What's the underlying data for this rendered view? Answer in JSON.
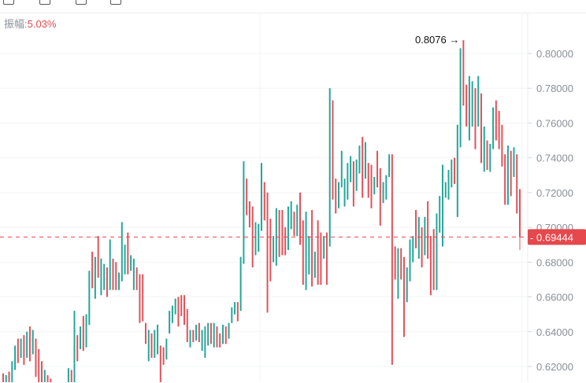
{
  "toolbar": {
    "icons": [
      "toolbar-icon-1",
      "toolbar-icon-2",
      "toolbar-icon-3",
      "toolbar-icon-4"
    ]
  },
  "amplitude": {
    "label": "振幅:",
    "value": "5.03%"
  },
  "colors": {
    "up": "#26a69a",
    "down": "#e0525a",
    "price_line": "#e5484d",
    "axis_text": "#8a8f99"
  },
  "chart_data": {
    "type": "candlestick",
    "ylim": [
      0.6105,
      0.8215
    ],
    "y_ticks": [
      "0.62000",
      "0.64000",
      "0.66000",
      "0.68000",
      "0.70000",
      "0.72000",
      "0.74000",
      "0.76000",
      "0.78000",
      "0.80000"
    ],
    "grid": true,
    "high_annotation": "0.8076 →",
    "current_price": "0.69444",
    "candles": [
      [
        0.616,
        0.616,
        0.611,
        0.611
      ],
      [
        0.611,
        0.615,
        0.611,
        0.615
      ],
      [
        0.617,
        0.617,
        0.611,
        0.611
      ],
      [
        0.611,
        0.623,
        0.611,
        0.623
      ],
      [
        0.618,
        0.632,
        0.618,
        0.632
      ],
      [
        0.636,
        0.636,
        0.622,
        0.622
      ],
      [
        0.625,
        0.636,
        0.625,
        0.636
      ],
      [
        0.638,
        0.638,
        0.621,
        0.621
      ],
      [
        0.625,
        0.64,
        0.625,
        0.64
      ],
      [
        0.643,
        0.643,
        0.623,
        0.623
      ],
      [
        0.627,
        0.641,
        0.627,
        0.641
      ],
      [
        0.636,
        0.636,
        0.614,
        0.614
      ],
      [
        0.63,
        0.63,
        0.611,
        0.611
      ],
      [
        0.623,
        0.623,
        0.609,
        0.609
      ],
      [
        0.611,
        0.618,
        0.611,
        0.618
      ],
      [
        0.615,
        0.615,
        0.608,
        0.608
      ],
      [
        0.613,
        0.613,
        0.606,
        0.606
      ],
      [
        0.6,
        0.608,
        0.6,
        0.608
      ],
      [
        0.606,
        0.606,
        0.598,
        0.598
      ],
      [
        0.599,
        0.607,
        0.599,
        0.607
      ],
      [
        0.601,
        0.609,
        0.601,
        0.609
      ],
      [
        0.603,
        0.61,
        0.603,
        0.61
      ],
      [
        0.607,
        0.619,
        0.607,
        0.619
      ],
      [
        0.618,
        0.618,
        0.609,
        0.609
      ],
      [
        0.61,
        0.652,
        0.61,
        0.652
      ],
      [
        0.638,
        0.638,
        0.623,
        0.623
      ],
      [
        0.63,
        0.643,
        0.63,
        0.643
      ],
      [
        0.649,
        0.649,
        0.629,
        0.629
      ],
      [
        0.631,
        0.65,
        0.631,
        0.65
      ],
      [
        0.644,
        0.675,
        0.644,
        0.675
      ],
      [
        0.686,
        0.686,
        0.665,
        0.665
      ],
      [
        0.659,
        0.683,
        0.659,
        0.683
      ],
      [
        0.695,
        0.695,
        0.671,
        0.671
      ],
      [
        0.661,
        0.682,
        0.661,
        0.682
      ],
      [
        0.664,
        0.679,
        0.664,
        0.679
      ],
      [
        0.677,
        0.677,
        0.66,
        0.66
      ],
      [
        0.664,
        0.693,
        0.664,
        0.693
      ],
      [
        0.682,
        0.682,
        0.664,
        0.664
      ],
      [
        0.68,
        0.68,
        0.664,
        0.664
      ],
      [
        0.664,
        0.674,
        0.664,
        0.674
      ],
      [
        0.669,
        0.703,
        0.669,
        0.703
      ],
      [
        0.673,
        0.69,
        0.673,
        0.69
      ],
      [
        0.697,
        0.697,
        0.673,
        0.673
      ],
      [
        0.675,
        0.684,
        0.675,
        0.684
      ],
      [
        0.664,
        0.682,
        0.664,
        0.682
      ],
      [
        0.677,
        0.677,
        0.664,
        0.664
      ],
      [
        0.673,
        0.673,
        0.645,
        0.645
      ],
      [
        0.673,
        0.673,
        0.646,
        0.646
      ],
      [
        0.645,
        0.645,
        0.633,
        0.633
      ],
      [
        0.623,
        0.641,
        0.623,
        0.641
      ],
      [
        0.639,
        0.639,
        0.625,
        0.625
      ],
      [
        0.625,
        0.641,
        0.625,
        0.641
      ],
      [
        0.627,
        0.644,
        0.627,
        0.644
      ],
      [
        0.632,
        0.632,
        0.611,
        0.611
      ],
      [
        0.631,
        0.631,
        0.621,
        0.621
      ],
      [
        0.624,
        0.636,
        0.624,
        0.636
      ],
      [
        0.639,
        0.652,
        0.639,
        0.652
      ],
      [
        0.645,
        0.655,
        0.645,
        0.655
      ],
      [
        0.65,
        0.659,
        0.65,
        0.659
      ],
      [
        0.66,
        0.66,
        0.643,
        0.643
      ],
      [
        0.661,
        0.661,
        0.649,
        0.649
      ],
      [
        0.661,
        0.661,
        0.644,
        0.644
      ],
      [
        0.653,
        0.653,
        0.634,
        0.634
      ],
      [
        0.631,
        0.641,
        0.631,
        0.641
      ],
      [
        0.641,
        0.641,
        0.634,
        0.634
      ],
      [
        0.635,
        0.644,
        0.635,
        0.644
      ],
      [
        0.645,
        0.645,
        0.634,
        0.634
      ],
      [
        0.629,
        0.641,
        0.629,
        0.641
      ],
      [
        0.625,
        0.643,
        0.625,
        0.643
      ],
      [
        0.632,
        0.645,
        0.632,
        0.645
      ],
      [
        0.645,
        0.645,
        0.633,
        0.633
      ],
      [
        0.631,
        0.645,
        0.631,
        0.645
      ],
      [
        0.643,
        0.643,
        0.631,
        0.631
      ],
      [
        0.639,
        0.639,
        0.631,
        0.631
      ],
      [
        0.633,
        0.644,
        0.633,
        0.644
      ],
      [
        0.643,
        0.643,
        0.633,
        0.633
      ],
      [
        0.636,
        0.645,
        0.636,
        0.645
      ],
      [
        0.645,
        0.654,
        0.645,
        0.654
      ],
      [
        0.65,
        0.657,
        0.65,
        0.657
      ],
      [
        0.657,
        0.657,
        0.646,
        0.646
      ],
      [
        0.652,
        0.683,
        0.652,
        0.683
      ],
      [
        0.679,
        0.738,
        0.679,
        0.738
      ],
      [
        0.728,
        0.728,
        0.707,
        0.707
      ],
      [
        0.715,
        0.715,
        0.7,
        0.7
      ],
      [
        0.712,
        0.712,
        0.677,
        0.677
      ],
      [
        0.684,
        0.703,
        0.684,
        0.703
      ],
      [
        0.686,
        0.702,
        0.686,
        0.702
      ],
      [
        0.698,
        0.737,
        0.698,
        0.737
      ],
      [
        0.726,
        0.726,
        0.704,
        0.704
      ],
      [
        0.72,
        0.72,
        0.651,
        0.651
      ],
      [
        0.705,
        0.705,
        0.669,
        0.669
      ],
      [
        0.68,
        0.695,
        0.68,
        0.695
      ],
      [
        0.678,
        0.711,
        0.678,
        0.711
      ],
      [
        0.71,
        0.71,
        0.683,
        0.683
      ],
      [
        0.71,
        0.71,
        0.684,
        0.684
      ],
      [
        0.7,
        0.7,
        0.684,
        0.684
      ],
      [
        0.687,
        0.712,
        0.687,
        0.712
      ],
      [
        0.699,
        0.715,
        0.699,
        0.715
      ],
      [
        0.709,
        0.709,
        0.695,
        0.695
      ],
      [
        0.695,
        0.713,
        0.695,
        0.713
      ],
      [
        0.72,
        0.72,
        0.69,
        0.69
      ],
      [
        0.704,
        0.704,
        0.667,
        0.667
      ],
      [
        0.664,
        0.709,
        0.664,
        0.709
      ],
      [
        0.673,
        0.695,
        0.673,
        0.695
      ],
      [
        0.71,
        0.71,
        0.666,
        0.666
      ],
      [
        0.671,
        0.686,
        0.671,
        0.686
      ],
      [
        0.704,
        0.704,
        0.667,
        0.667
      ],
      [
        0.697,
        0.697,
        0.667,
        0.667
      ],
      [
        0.682,
        0.695,
        0.682,
        0.695
      ],
      [
        0.697,
        0.697,
        0.667,
        0.667
      ],
      [
        0.689,
        0.78,
        0.689,
        0.78
      ],
      [
        0.773,
        0.773,
        0.716,
        0.716
      ],
      [
        0.728,
        0.728,
        0.708,
        0.708
      ],
      [
        0.711,
        0.726,
        0.711,
        0.726
      ],
      [
        0.723,
        0.744,
        0.723,
        0.744
      ],
      [
        0.712,
        0.728,
        0.712,
        0.728
      ],
      [
        0.716,
        0.737,
        0.716,
        0.737
      ],
      [
        0.726,
        0.741,
        0.726,
        0.741
      ],
      [
        0.738,
        0.738,
        0.712,
        0.712
      ],
      [
        0.721,
        0.739,
        0.721,
        0.739
      ],
      [
        0.731,
        0.747,
        0.731,
        0.747
      ],
      [
        0.752,
        0.752,
        0.717,
        0.717
      ],
      [
        0.728,
        0.749,
        0.728,
        0.749
      ],
      [
        0.737,
        0.737,
        0.717,
        0.717
      ],
      [
        0.736,
        0.736,
        0.711,
        0.711
      ],
      [
        0.719,
        0.729,
        0.719,
        0.729
      ],
      [
        0.744,
        0.744,
        0.723,
        0.723
      ],
      [
        0.734,
        0.734,
        0.701,
        0.701
      ],
      [
        0.714,
        0.726,
        0.714,
        0.726
      ],
      [
        0.716,
        0.73,
        0.716,
        0.73
      ],
      [
        0.729,
        0.742,
        0.729,
        0.742
      ],
      [
        0.742,
        0.742,
        0.621,
        0.621
      ],
      [
        0.689,
        0.689,
        0.67,
        0.67
      ],
      [
        0.659,
        0.688,
        0.659,
        0.688
      ],
      [
        0.688,
        0.688,
        0.67,
        0.67
      ],
      [
        0.683,
        0.683,
        0.637,
        0.637
      ],
      [
        0.657,
        0.677,
        0.657,
        0.677
      ],
      [
        0.669,
        0.693,
        0.669,
        0.693
      ],
      [
        0.68,
        0.695,
        0.68,
        0.695
      ],
      [
        0.71,
        0.71,
        0.688,
        0.688
      ],
      [
        0.682,
        0.706,
        0.682,
        0.706
      ],
      [
        0.7,
        0.7,
        0.677,
        0.677
      ],
      [
        0.684,
        0.706,
        0.684,
        0.706
      ],
      [
        0.715,
        0.715,
        0.682,
        0.682
      ],
      [
        0.695,
        0.695,
        0.661,
        0.661
      ],
      [
        0.699,
        0.699,
        0.664,
        0.664
      ],
      [
        0.664,
        0.708,
        0.664,
        0.708
      ],
      [
        0.697,
        0.718,
        0.697,
        0.718
      ],
      [
        0.689,
        0.736,
        0.689,
        0.736
      ],
      [
        0.717,
        0.726,
        0.717,
        0.726
      ],
      [
        0.716,
        0.733,
        0.716,
        0.733
      ],
      [
        0.723,
        0.739,
        0.723,
        0.739
      ],
      [
        0.74,
        0.74,
        0.725,
        0.725
      ],
      [
        0.706,
        0.759,
        0.706,
        0.759
      ],
      [
        0.746,
        0.803,
        0.746,
        0.803
      ],
      [
        0.8076,
        0.8076,
        0.77,
        0.77
      ],
      [
        0.782,
        0.782,
        0.758,
        0.758
      ],
      [
        0.75,
        0.787,
        0.75,
        0.787
      ],
      [
        0.758,
        0.784,
        0.758,
        0.784
      ],
      [
        0.78,
        0.78,
        0.745,
        0.745
      ],
      [
        0.758,
        0.787,
        0.758,
        0.787
      ],
      [
        0.777,
        0.777,
        0.737,
        0.737
      ],
      [
        0.732,
        0.758,
        0.732,
        0.758
      ],
      [
        0.75,
        0.75,
        0.733,
        0.733
      ],
      [
        0.732,
        0.748,
        0.732,
        0.748
      ],
      [
        0.745,
        0.769,
        0.745,
        0.769
      ],
      [
        0.773,
        0.773,
        0.75,
        0.75
      ],
      [
        0.767,
        0.767,
        0.745,
        0.745
      ],
      [
        0.759,
        0.759,
        0.735,
        0.735
      ],
      [
        0.742,
        0.742,
        0.713,
        0.713
      ],
      [
        0.713,
        0.747,
        0.713,
        0.747
      ],
      [
        0.744,
        0.744,
        0.718,
        0.718
      ],
      [
        0.729,
        0.746,
        0.729,
        0.746
      ],
      [
        0.742,
        0.742,
        0.708,
        0.708
      ],
      [
        0.722,
        0.722,
        0.687,
        0.69444
      ]
    ]
  }
}
